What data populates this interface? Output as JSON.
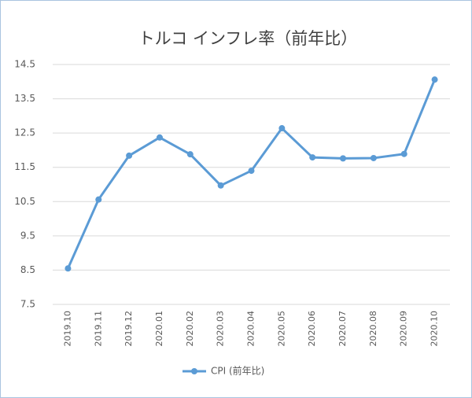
{
  "chart_data": {
    "type": "line",
    "title": "トルコ インフレ率（前年比）",
    "categories": [
      "2019.10",
      "2019.11",
      "2019.12",
      "2020.01",
      "2020.02",
      "2020.03",
      "2020.04",
      "2020.05",
      "2020.06",
      "2020.07",
      "2020.08",
      "2020.09",
      "2020.10"
    ],
    "series": [
      {
        "name": "CPI (前年比)",
        "color": "#5b9bd5",
        "values": [
          8.55,
          10.56,
          11.84,
          12.37,
          11.88,
          10.97,
          11.4,
          12.64,
          11.79,
          11.76,
          11.77,
          11.89,
          14.06
        ]
      }
    ],
    "ylim": [
      7.5,
      14.5
    ],
    "yticks": [
      7.5,
      8.5,
      9.5,
      10.5,
      11.5,
      12.5,
      13.5,
      14.5
    ],
    "grid": true,
    "legend": "bottom"
  }
}
